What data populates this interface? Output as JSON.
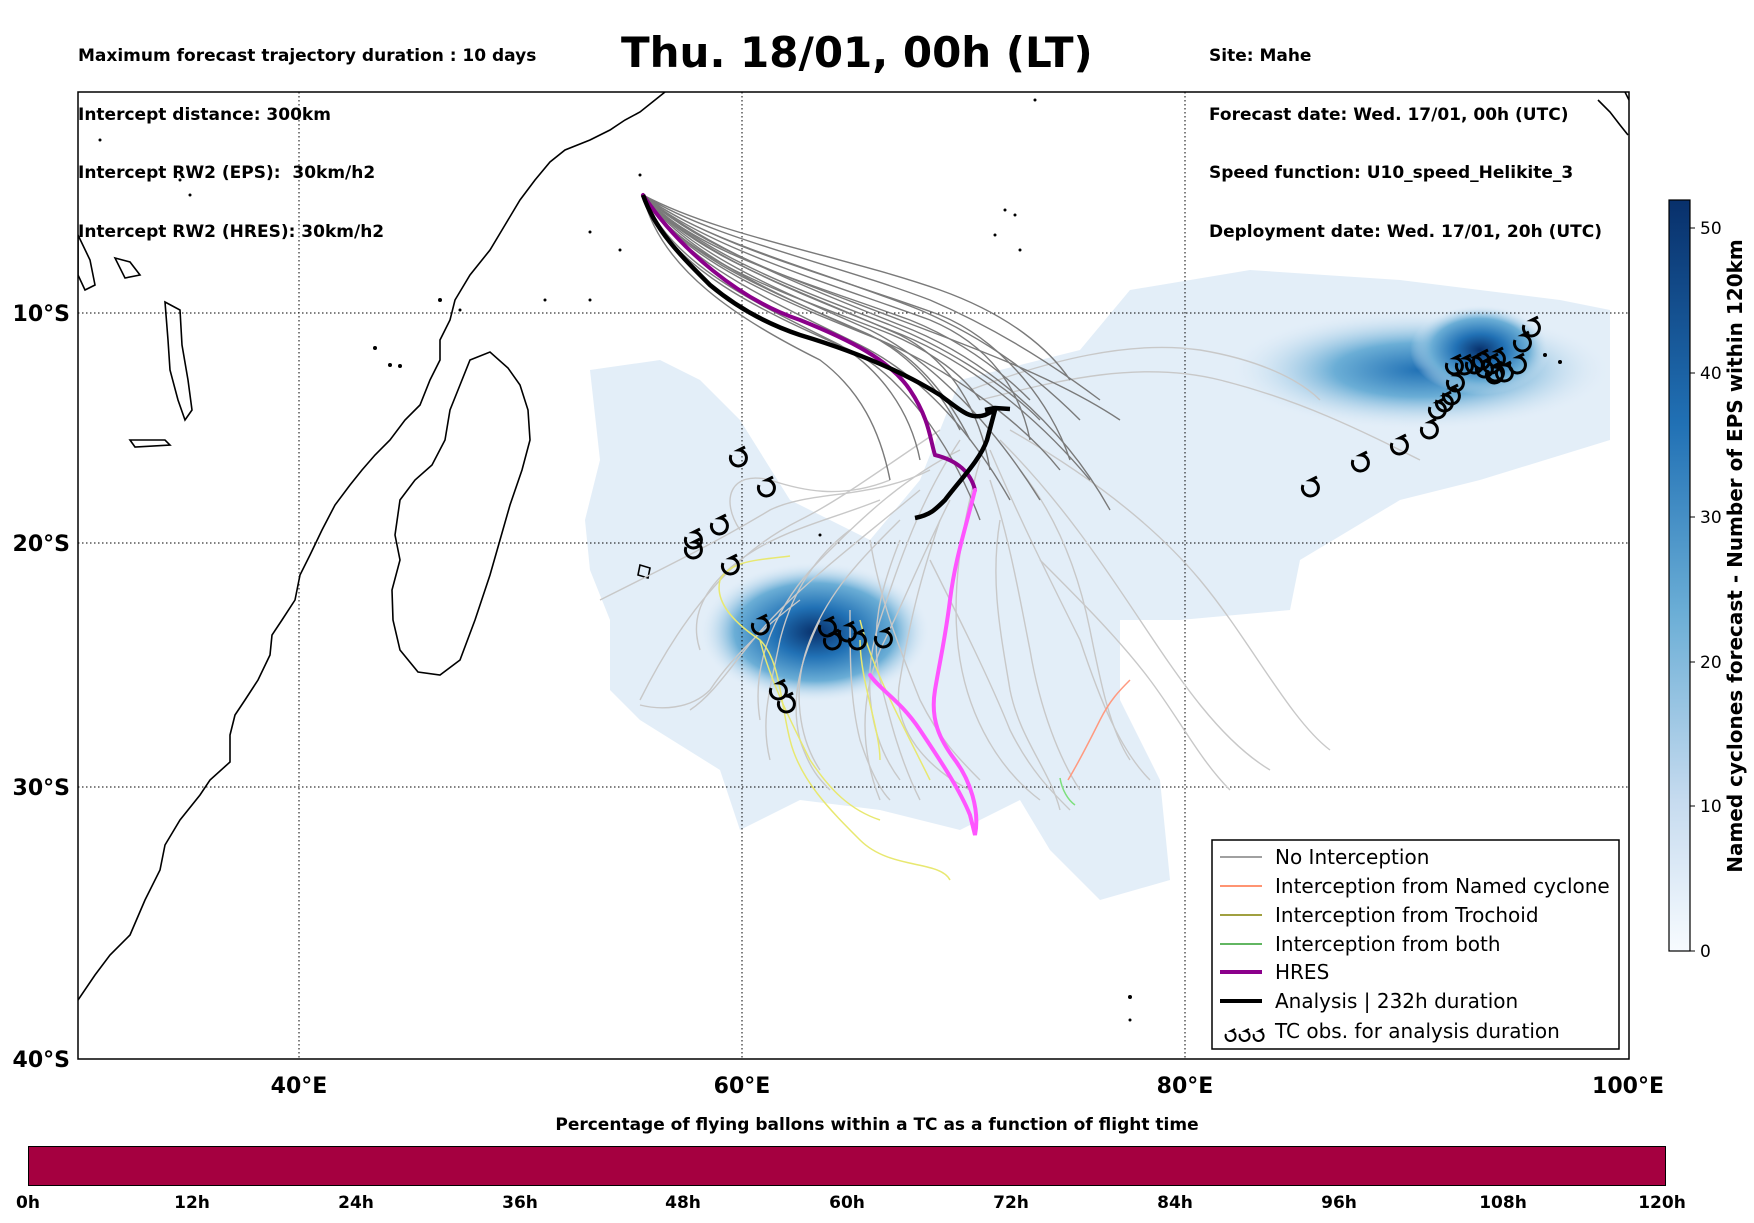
{
  "header_left": {
    "line1": "Maximum forecast trajectory duration : 10 days",
    "line2": "Intercept distance: 300km",
    "line3": "Intercept RW2 (EPS):  30km/h2",
    "line4": "Intercept RW2 (HRES): 30km/h2"
  },
  "title": "Thu. 18/01, 00h (LT)",
  "header_right": {
    "line1": "Site: Mahe",
    "line2": "Forecast date: Wed. 17/01, 00h (UTC)",
    "line3": "Speed function: U10_speed_Helikite_3",
    "line4": "Deployment date: Wed. 17/01, 20h (UTC)"
  },
  "map": {
    "lon_range": [
      30,
      100
    ],
    "lat_range": [
      -40,
      1
    ],
    "lon_ticks": [
      "40°E",
      "60°E",
      "80°E",
      "100°E"
    ],
    "lat_ticks": [
      "10°S",
      "20°S",
      "30°S",
      "40°S"
    ],
    "colors": {
      "no_interception": "#808080",
      "named_cyclone": "#ff7043",
      "trochoid": "#808000",
      "both": "#2e9e2e",
      "hres": "#8b008b",
      "hres_late": "#ff55ff",
      "analysis": "#000000",
      "density_light": "#deebf7",
      "density_dark": "#08306b",
      "percentage_bar": "#a50040"
    }
  },
  "legend": {
    "items": [
      {
        "label": "No Interception",
        "color": "#808080"
      },
      {
        "label": "Interception from Named cyclone",
        "color": "#ff7043"
      },
      {
        "label": "Interception from Trochoid",
        "color": "#808000"
      },
      {
        "label": "Interception from both",
        "color": "#2e9e2e"
      },
      {
        "label": "HRES",
        "color": "#8b008b"
      },
      {
        "label": "Analysis | 232h duration",
        "color": "#000000"
      },
      {
        "label": "TC obs. for analysis duration",
        "color": "#000000"
      }
    ]
  },
  "colorbar": {
    "title": "Named cyclones forecast - Number of EPS within 120km",
    "ticks": [
      "0",
      "10",
      "20",
      "30",
      "40",
      "50"
    ],
    "range": [
      0,
      52
    ]
  },
  "bottom_bar": {
    "title": "Percentage of flying ballons within a TC as a function of flight time",
    "ticks": [
      "0h",
      "12h",
      "24h",
      "36h",
      "48h",
      "60h",
      "72h",
      "84h",
      "96h",
      "108h",
      "120h"
    ]
  }
}
